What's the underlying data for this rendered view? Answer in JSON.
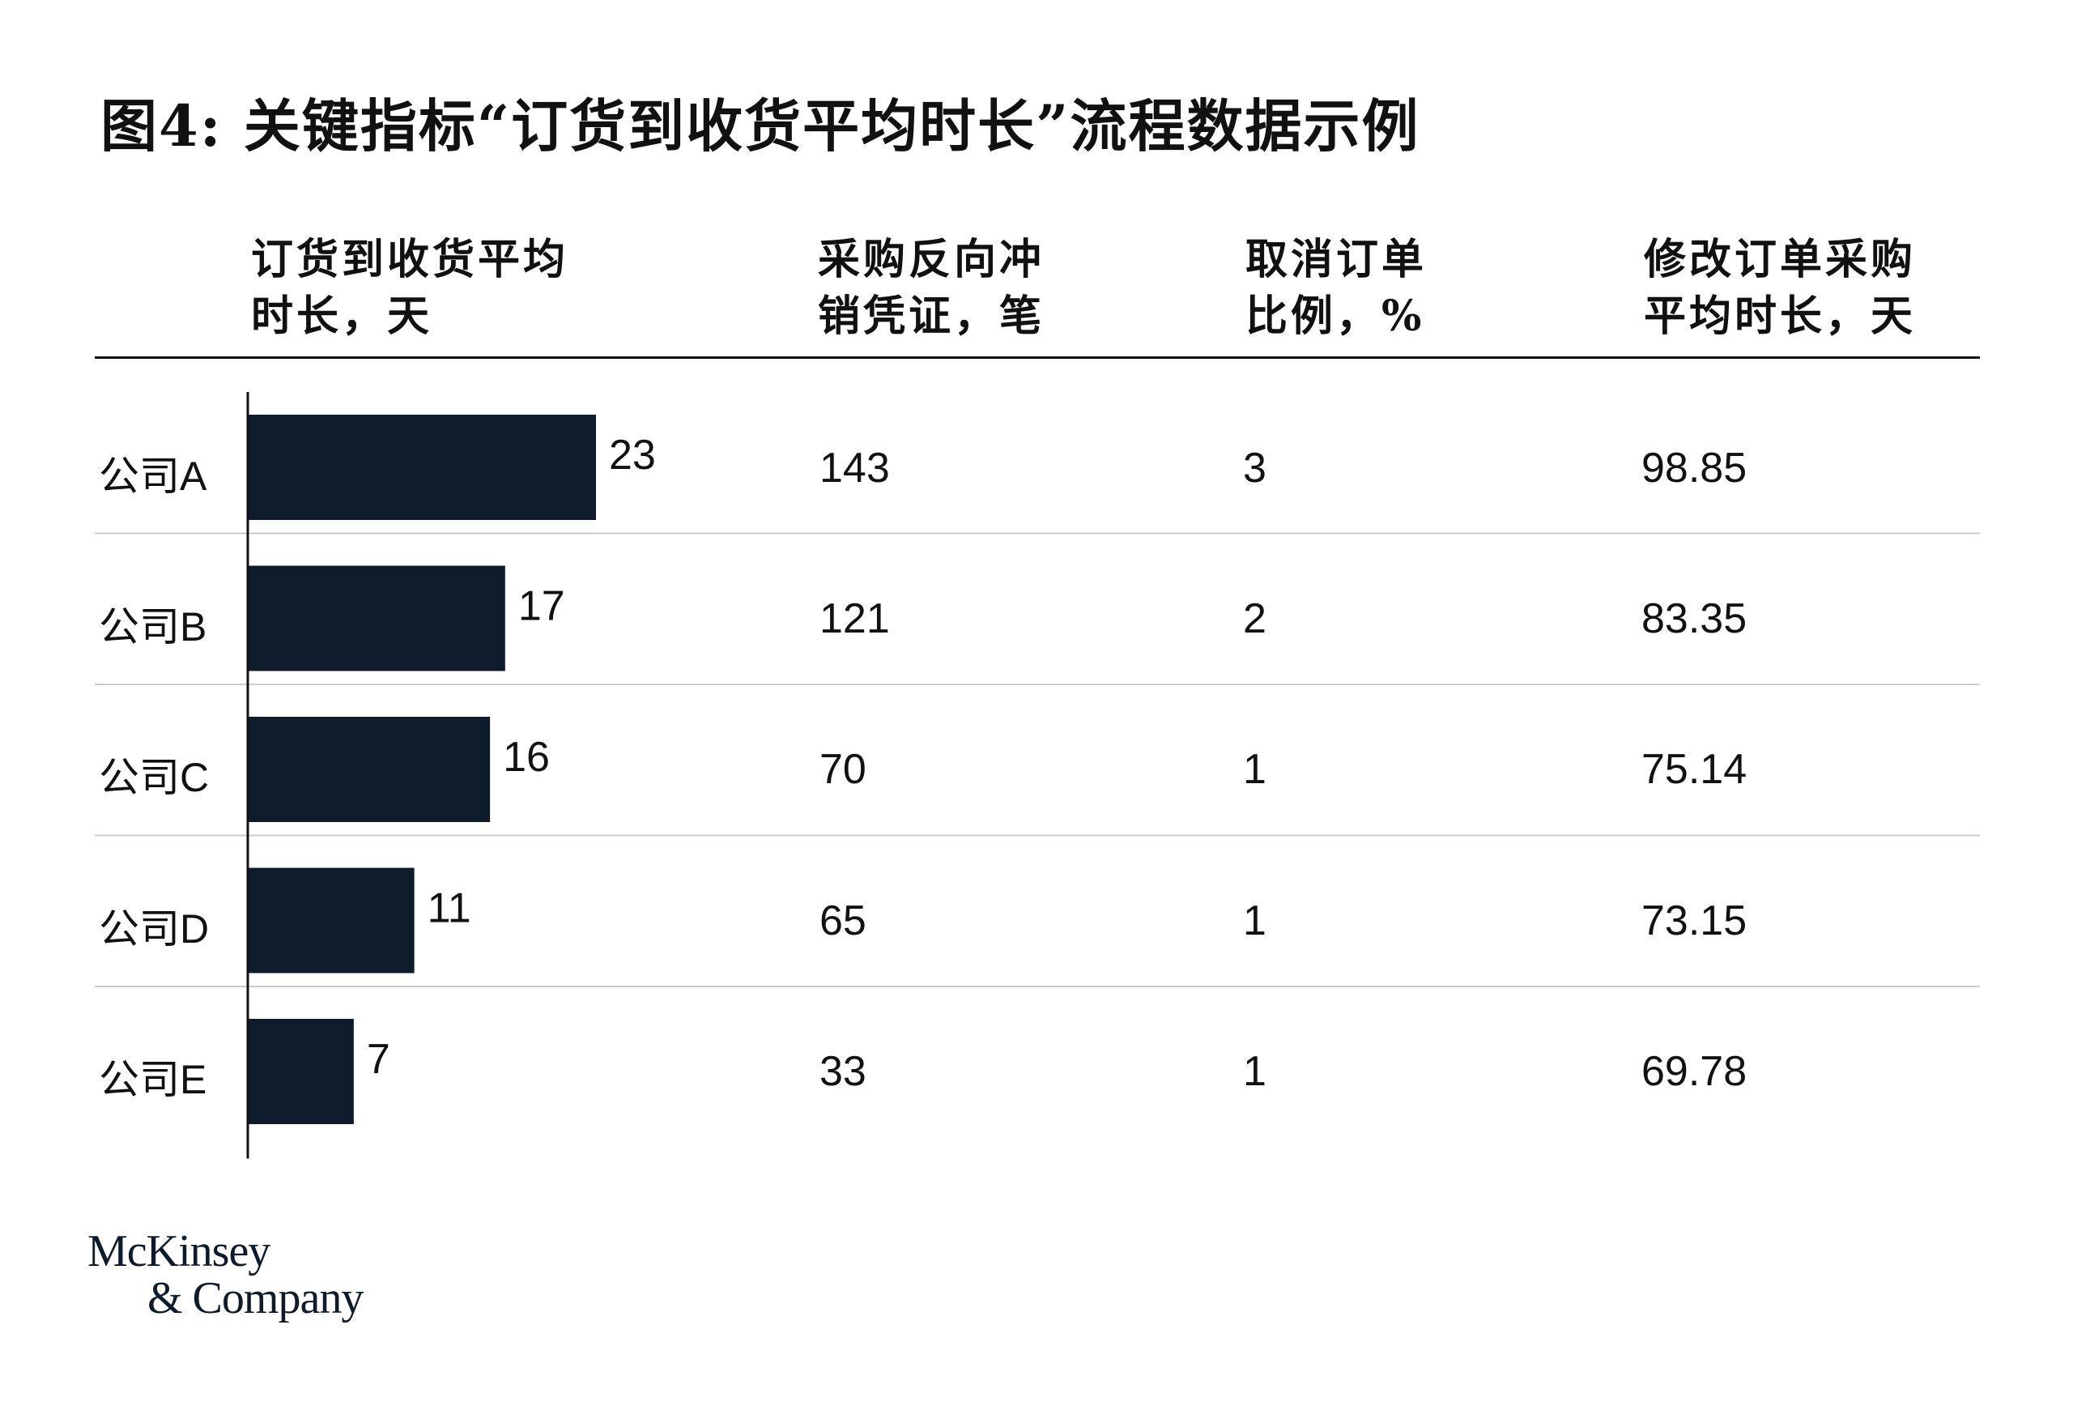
{
  "title": "图4: 关键指标“订货到收货平均时长”流程数据示例",
  "headers": [
    {
      "line1": "订货到收货平均",
      "line2": "时长，天"
    },
    {
      "line1": "采购反向冲",
      "line2": "销凭证，笔"
    },
    {
      "line1": "取消订单",
      "line2": "比例，%"
    },
    {
      "line1": "修改订单采购",
      "line2": "平均时长，天"
    }
  ],
  "rows": [
    {
      "label": "公司A",
      "reversal": "143",
      "cancel": "3",
      "modify": "98.85"
    },
    {
      "label": "公司B",
      "reversal": "121",
      "cancel": "2",
      "modify": "83.35"
    },
    {
      "label": "公司C",
      "reversal": "70",
      "cancel": "1",
      "modify": "75.14"
    },
    {
      "label": "公司D",
      "reversal": "65",
      "cancel": "1",
      "modify": "73.15"
    },
    {
      "label": "公司E",
      "reversal": "33",
      "cancel": "1",
      "modify": "69.78"
    }
  ],
  "chart_data": {
    "type": "bar",
    "orientation": "horizontal",
    "categories": [
      "公司A",
      "公司B",
      "公司C",
      "公司D",
      "公司E"
    ],
    "values": [
      23,
      17,
      16,
      11,
      7
    ],
    "xlim": [
      0,
      23
    ],
    "grid": false,
    "bar_color": "#0d1b2a"
  },
  "colors": {
    "bar": "#0d1b2a",
    "divider": "#cccccc",
    "text": "#111111"
  },
  "logo": {
    "line1": "McKinsey",
    "line2": "& Company"
  }
}
